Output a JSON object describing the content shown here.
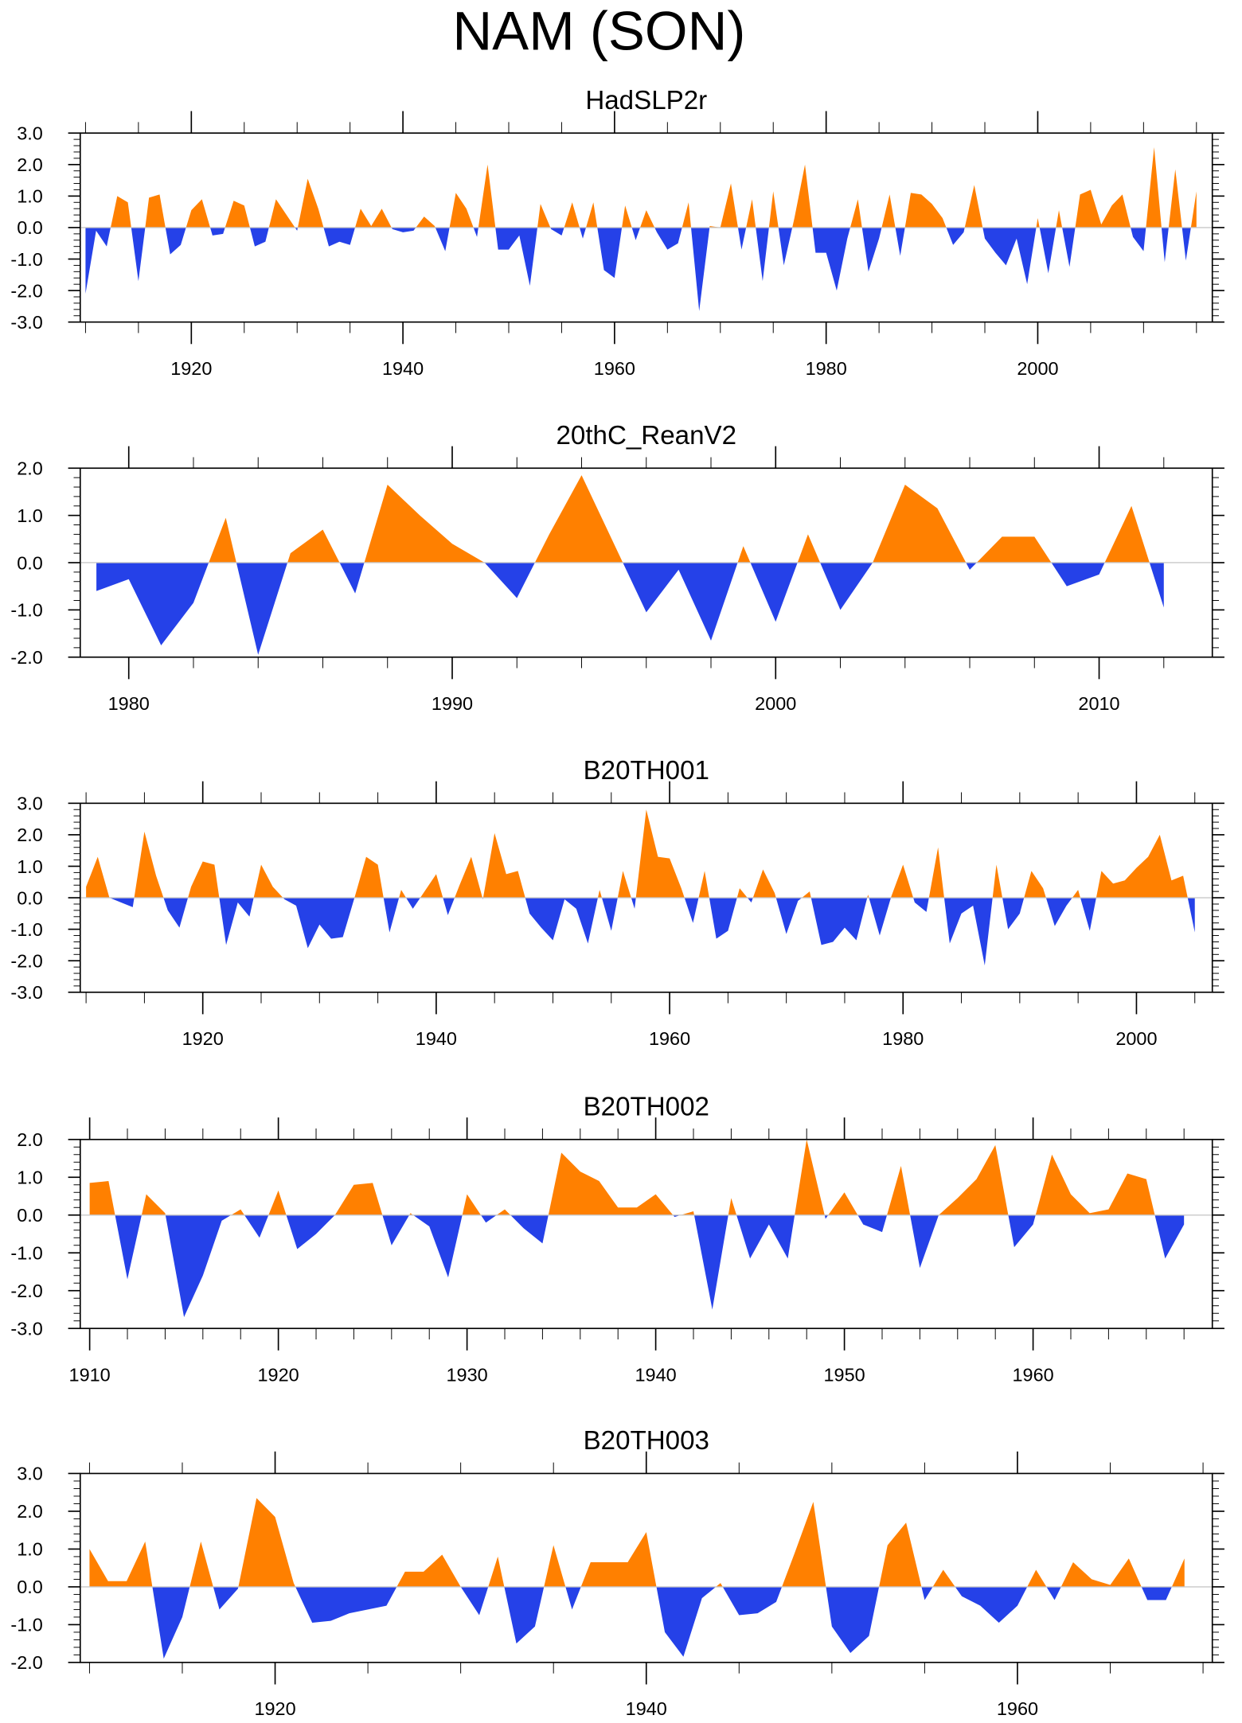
{
  "chart_data": {
    "title": "NAM (SON)",
    "colors": {
      "positive": "#ff8000",
      "negative": "#2541e8",
      "zero_line": "#c8c8c8",
      "axis": "#000000"
    },
    "panels": [
      {
        "type": "area",
        "title": "HadSLP2r",
        "x_start": 1910,
        "xlim": [
          1909.5,
          2016.5
        ],
        "ylim": [
          -3,
          3
        ],
        "x_major": 20,
        "x_minor": 5,
        "x_first_major": 1920,
        "y_ticks": [
          "3.0",
          "2.0",
          "1.0",
          "0.0",
          "-1.0",
          "-2.0",
          "-3.0"
        ],
        "x_tick_labels": [
          "1920",
          "1940",
          "1960",
          "1980",
          "2000"
        ],
        "values": [
          -2.1,
          -0.1,
          -0.6,
          1.0,
          0.8,
          -1.7,
          0.95,
          1.05,
          -0.85,
          -0.55,
          0.55,
          0.9,
          -0.25,
          -0.2,
          0.85,
          0.7,
          -0.6,
          -0.45,
          0.9,
          0.4,
          -0.1,
          1.55,
          0.6,
          -0.6,
          -0.45,
          -0.55,
          0.6,
          0.05,
          0.6,
          -0.05,
          -0.15,
          -0.1,
          0.35,
          0.05,
          -0.75,
          1.1,
          0.6,
          -0.3,
          2.0,
          -0.7,
          -0.7,
          -0.25,
          -1.85,
          0.75,
          -0.05,
          -0.25,
          0.8,
          -0.35,
          0.8,
          -1.35,
          -1.6,
          0.7,
          -0.4,
          0.55,
          -0.15,
          -0.7,
          -0.5,
          0.8,
          -2.65,
          0.05,
          0.0,
          1.4,
          -0.7,
          0.9,
          -1.7,
          1.15,
          -1.2,
          0.3,
          2.0,
          -0.8,
          -0.8,
          -2.0,
          -0.35,
          0.9,
          -1.4,
          -0.35,
          1.05,
          -0.9,
          1.1,
          1.05,
          0.75,
          0.3,
          -0.55,
          -0.15,
          1.35,
          -0.35,
          -0.8,
          -1.2,
          -0.35,
          -1.8,
          0.3,
          -1.45,
          0.55,
          -1.25,
          1.05,
          1.2,
          0.1,
          0.7,
          1.05,
          -0.3,
          -0.75,
          2.55,
          -1.1,
          1.85,
          -1.05,
          1.15
        ]
      },
      {
        "type": "area",
        "title": "20thC_ReanV2",
        "x_start": 1979,
        "xlim": [
          1978.5,
          2013.5
        ],
        "ylim": [
          -2,
          2
        ],
        "x_major": 10,
        "x_minor": 2,
        "x_first_major": 1980,
        "y_ticks": [
          "2.0",
          "1.0",
          "0.0",
          "-1.0",
          "-2.0"
        ],
        "x_tick_labels": [
          "1980",
          "1990",
          "2000",
          "2010"
        ],
        "values": [
          -0.6,
          -0.35,
          -1.75,
          -0.85,
          0.95,
          -1.95,
          0.2,
          0.7,
          -0.65,
          1.65,
          1.0,
          0.4,
          0.0,
          -0.75,
          0.6,
          1.85,
          0.4,
          -1.05,
          -0.15,
          -1.65,
          0.35,
          -1.25,
          0.6,
          -1.0,
          0.0,
          1.65,
          1.15,
          -0.15,
          0.55,
          0.55,
          -0.5,
          -0.25,
          1.2,
          -0.95
        ]
      },
      {
        "type": "area",
        "title": "B20TH001",
        "x_start": 1910,
        "xlim": [
          1909.5,
          2006.5
        ],
        "ylim": [
          -3,
          3
        ],
        "x_major": 20,
        "x_minor": 5,
        "x_first_major": 1920,
        "y_ticks": [
          "3.0",
          "2.0",
          "1.0",
          "0.0",
          "-1.0",
          "-2.0",
          "-3.0"
        ],
        "x_tick_labels": [
          "1920",
          "1940",
          "1960",
          "1980",
          "2000"
        ],
        "values": [
          0.35,
          1.3,
          0.0,
          -0.15,
          -0.3,
          2.1,
          0.7,
          -0.4,
          -0.95,
          0.35,
          1.15,
          1.05,
          -1.5,
          -0.15,
          -0.6,
          1.05,
          0.35,
          -0.05,
          -0.25,
          -1.6,
          -0.85,
          -1.3,
          -1.25,
          0.0,
          1.3,
          1.05,
          -1.1,
          0.25,
          -0.35,
          0.2,
          0.75,
          -0.55,
          0.4,
          1.3,
          -0.05,
          2.05,
          0.75,
          0.85,
          -0.5,
          -0.95,
          -1.35,
          -0.05,
          -0.35,
          -1.45,
          0.25,
          -1.05,
          0.85,
          -0.35,
          2.8,
          1.3,
          1.25,
          0.3,
          -0.8,
          0.85,
          -1.3,
          -1.05,
          0.3,
          -0.15,
          0.9,
          0.15,
          -1.15,
          -0.1,
          0.2,
          -1.5,
          -1.4,
          -0.95,
          -1.35,
          0.1,
          -1.2,
          0.05,
          1.05,
          -0.15,
          -0.45,
          1.6,
          -1.45,
          -0.5,
          -0.25,
          -2.15,
          1.05,
          -1.0,
          -0.5,
          0.85,
          0.3,
          -0.9,
          -0.25,
          0.25,
          -1.05,
          0.85,
          0.45,
          0.55,
          0.95,
          1.3,
          2.0,
          0.55,
          0.7,
          -1.1
        ]
      },
      {
        "type": "area",
        "title": "B20TH002",
        "x_start": 1910,
        "xlim": [
          1909.5,
          1969.5
        ],
        "ylim": [
          -3,
          2
        ],
        "x_major": 10,
        "x_minor": 2,
        "x_first_major": 1910,
        "y_ticks": [
          "2.0",
          "1.0",
          "0.0",
          "-1.0",
          "-2.0",
          "-3.0"
        ],
        "x_tick_labels": [
          "1910",
          "1920",
          "1930",
          "1940",
          "1950",
          "1960"
        ],
        "values": [
          0.85,
          0.9,
          -1.7,
          0.55,
          0.05,
          -2.7,
          -1.6,
          -0.15,
          0.15,
          -0.6,
          0.65,
          -0.9,
          -0.5,
          0.0,
          0.8,
          0.85,
          -0.8,
          0.05,
          -0.3,
          -1.65,
          0.55,
          -0.2,
          0.15,
          -0.35,
          -0.75,
          1.65,
          1.15,
          0.9,
          0.2,
          0.2,
          0.55,
          -0.05,
          0.1,
          -2.5,
          0.45,
          -1.15,
          -0.25,
          -1.15,
          2.0,
          -0.1,
          0.6,
          -0.25,
          -0.45,
          1.3,
          -1.4,
          0.0,
          0.45,
          0.95,
          1.85,
          -0.85,
          -0.25,
          1.6,
          0.55,
          0.05,
          0.15,
          1.1,
          0.95,
          -1.15,
          -0.25
        ]
      },
      {
        "type": "area",
        "title": "B20TH003",
        "x_start": 1910,
        "xlim": [
          1909.5,
          1970.5
        ],
        "ylim": [
          -2,
          3
        ],
        "x_major": 20,
        "x_minor": 5,
        "x_first_major": 1920,
        "y_ticks": [
          "3.0",
          "2.0",
          "1.0",
          "0.0",
          "-1.0",
          "-2.0"
        ],
        "x_tick_labels": [
          "1920",
          "1940",
          "1960"
        ],
        "values": [
          1.0,
          0.15,
          0.15,
          1.2,
          -1.9,
          -0.8,
          1.2,
          -0.6,
          -0.05,
          2.35,
          1.85,
          0.1,
          -0.95,
          -0.9,
          -0.7,
          -0.6,
          -0.5,
          0.4,
          0.4,
          0.85,
          0.0,
          -0.75,
          0.8,
          -1.5,
          -1.05,
          1.1,
          -0.6,
          0.65,
          0.65,
          0.65,
          1.45,
          -1.2,
          -1.85,
          -0.3,
          0.1,
          -0.75,
          -0.7,
          -0.4,
          0.9,
          2.25,
          -1.05,
          -1.75,
          -1.3,
          1.1,
          1.7,
          -0.35,
          0.45,
          -0.25,
          -0.5,
          -0.95,
          -0.5,
          0.45,
          -0.35,
          0.65,
          0.2,
          0.05,
          0.75,
          -0.35,
          -0.35,
          0.75
        ]
      }
    ]
  }
}
